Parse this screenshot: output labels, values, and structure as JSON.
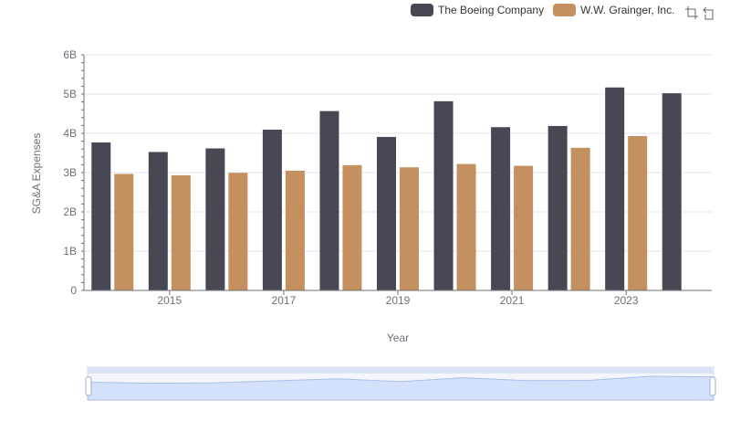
{
  "chart_data": {
    "type": "bar",
    "title": "",
    "xlabel": "Year",
    "ylabel": "SG&A Expenses",
    "categories": [
      "2014",
      "2015",
      "2016",
      "2017",
      "2018",
      "2019",
      "2020",
      "2021",
      "2022",
      "2023",
      "2024"
    ],
    "x_tick_labels": [
      "2015",
      "2017",
      "2019",
      "2021",
      "2023"
    ],
    "y_tick_labels": [
      "0",
      "1B",
      "2B",
      "3B",
      "4B",
      "5B",
      "6B"
    ],
    "ylim": [
      0,
      6000000000
    ],
    "grid": true,
    "legend_position": "top-right",
    "series": [
      {
        "name": "The Boeing Company",
        "color": "#484855",
        "values": [
          3767000000,
          3525000000,
          3616000000,
          4094000000,
          4567000000,
          3909000000,
          4817000000,
          4157000000,
          4187000000,
          5168000000,
          5021000000
        ]
      },
      {
        "name": "W.W. Grainger, Inc.",
        "color": "#c49060",
        "values": [
          2967000000,
          2932000000,
          2995000000,
          3049000000,
          3190000000,
          3135000000,
          3219000000,
          3173000000,
          3632000000,
          3931000000,
          null
        ]
      }
    ],
    "datazoom": {
      "range_percent": [
        0,
        100
      ]
    }
  },
  "toolbox": {
    "zoom_icon": "zoom-icon",
    "restore_icon": "restore-icon"
  }
}
